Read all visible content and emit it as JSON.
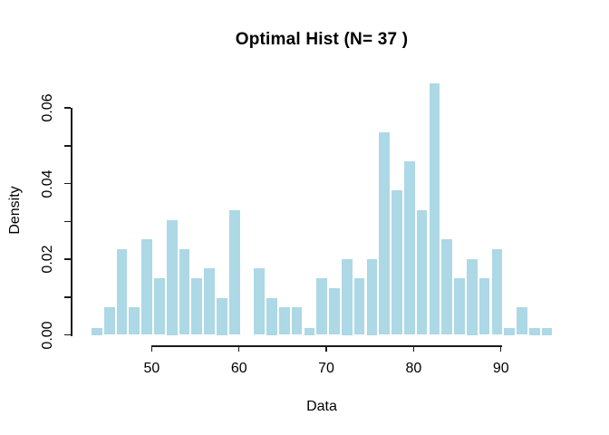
{
  "chart_data": {
    "type": "bar",
    "subtype": "histogram",
    "title": "Optimal Hist (N= 37 )",
    "xlabel": "Data",
    "ylabel": "Density",
    "n_bins": 37,
    "bin_start": 43.0,
    "bin_width": 1.4324,
    "densities": [
      0.0024,
      0.0077,
      0.0232,
      0.0077,
      0.0258,
      0.0155,
      0.0309,
      0.0232,
      0.0155,
      0.018,
      0.0103,
      0.0335,
      0,
      0.018,
      0.0103,
      0.0077,
      0.0077,
      0.0024,
      0.0155,
      0.0129,
      0.0206,
      0.0155,
      0.0206,
      0.0541,
      0.0386,
      0.0464,
      0.0335,
      0.067,
      0.0258,
      0.0155,
      0.0206,
      0.0155,
      0.0232,
      0.0024,
      0.0077,
      0.0024,
      0.0024
    ],
    "x_ticks": [
      {
        "v": 50,
        "label": "50"
      },
      {
        "v": 60,
        "label": "60"
      },
      {
        "v": 70,
        "label": "70"
      },
      {
        "v": 80,
        "label": "80"
      },
      {
        "v": 90,
        "label": "90"
      }
    ],
    "y_ticks": [
      {
        "v": 0.0,
        "label": "0.00"
      },
      {
        "v": 0.01,
        "label": ""
      },
      {
        "v": 0.02,
        "label": "0.02"
      },
      {
        "v": 0.03,
        "label": ""
      },
      {
        "v": 0.04,
        "label": "0.04"
      },
      {
        "v": 0.05,
        "label": ""
      },
      {
        "v": 0.06,
        "label": "0.06"
      }
    ],
    "xlim": [
      43,
      96
    ],
    "ylim": [
      0,
      0.067
    ],
    "grid": false,
    "legend": null,
    "bar_color": "#ADD8E6",
    "bar_border_color": "#FFFFFF",
    "axis_color": "#1A1A1A",
    "background_color": "#FFFFFF"
  }
}
